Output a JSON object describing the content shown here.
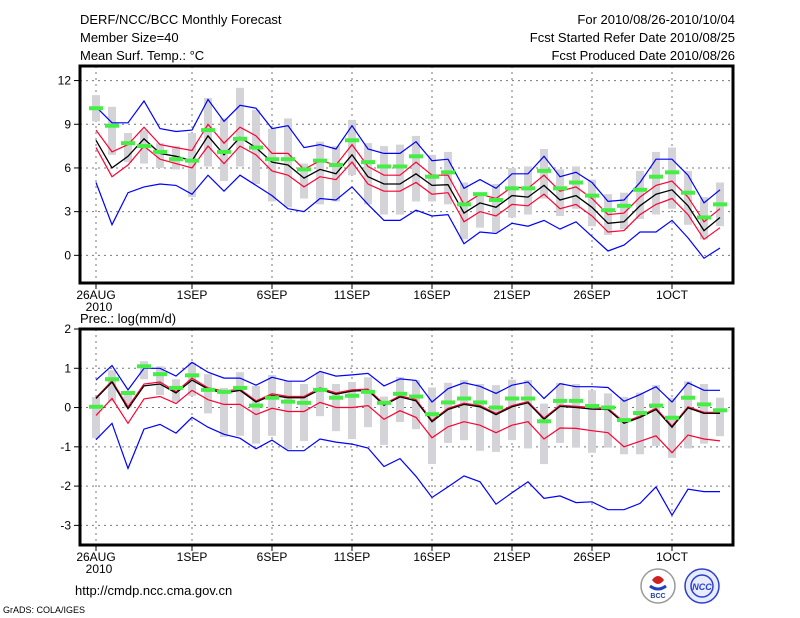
{
  "header": {
    "title": "DERF/NCC/BCC Monthly Forecast",
    "member_size": "Member Size=40",
    "variable": "Mean Surf. Temp.: °C",
    "period": "For 2010/08/26-2010/10/04",
    "start_date": "Fcst Started Refer Date 2010/08/25",
    "produced_date": "Fcst Produced Date 2010/08/26"
  },
  "footer": {
    "url": "http://cmdp.ncc.cma.gov.cn",
    "credit": "GrADS: COLA/IGES",
    "logo_left": "BCC",
    "logo_right": "NCC"
  },
  "colors": {
    "envelope": "#0000ff",
    "spread": "#ff0033",
    "mean": "#000000",
    "box": "#d3d3d8",
    "marker": "#44ee44",
    "grid": "#777777"
  },
  "chart_data": [
    {
      "type": "line",
      "title": "Mean Surf. Temp.: °C",
      "ylabel": "°C",
      "ylim": [
        -1.9,
        13.0
      ],
      "yticks": [
        0,
        3,
        6,
        9,
        12
      ],
      "xticks": [
        {
          "day": 0,
          "label": "26AUG",
          "sub": "2010"
        },
        {
          "day": 6,
          "label": "1SEP"
        },
        {
          "day": 11,
          "label": "6SEP"
        },
        {
          "day": 16,
          "label": "11SEP"
        },
        {
          "day": 21,
          "label": "16SEP"
        },
        {
          "day": 26,
          "label": "21SEP"
        },
        {
          "day": 31,
          "label": "26SEP"
        },
        {
          "day": 36,
          "label": "1OCT"
        }
      ],
      "grid": true,
      "days": 40,
      "series": {
        "blue_upper": [
          10.2,
          9.1,
          9.1,
          10.6,
          8.7,
          8.5,
          8.6,
          10.7,
          9.2,
          10.3,
          10.1,
          8.7,
          8.9,
          7.4,
          7.6,
          7.3,
          8.9,
          7.3,
          7.0,
          7.0,
          7.8,
          6.5,
          6.6,
          4.6,
          5.2,
          4.6,
          5.6,
          5.6,
          6.8,
          5.4,
          5.7,
          5.0,
          3.7,
          3.8,
          5.0,
          6.6,
          6.6,
          5.5,
          3.6,
          4.5
        ],
        "red_upper": [
          8.6,
          7.1,
          7.6,
          8.8,
          7.6,
          7.4,
          7.2,
          9.0,
          7.7,
          8.8,
          8.2,
          7.0,
          7.0,
          5.9,
          6.5,
          6.2,
          7.6,
          6.1,
          5.5,
          5.5,
          6.4,
          5.5,
          5.5,
          3.5,
          4.2,
          3.9,
          4.7,
          4.6,
          5.5,
          4.4,
          4.7,
          3.9,
          2.8,
          2.9,
          4.0,
          4.8,
          5.1,
          4.0,
          2.3,
          3.2
        ],
        "mean": [
          7.9,
          6.0,
          6.8,
          8.0,
          7.0,
          6.8,
          6.5,
          8.2,
          6.9,
          8.1,
          7.4,
          6.4,
          6.2,
          5.3,
          5.9,
          5.6,
          6.9,
          5.4,
          4.9,
          4.9,
          5.6,
          4.8,
          4.85,
          2.9,
          3.6,
          3.3,
          4.1,
          4.0,
          4.8,
          3.8,
          4.1,
          3.3,
          2.2,
          2.3,
          3.4,
          4.2,
          4.5,
          3.4,
          1.7,
          2.6
        ],
        "red_lower": [
          7.4,
          5.4,
          6.2,
          7.5,
          6.6,
          6.3,
          6.0,
          7.5,
          6.3,
          7.5,
          6.9,
          5.8,
          5.5,
          4.7,
          5.4,
          5.2,
          6.4,
          4.9,
          4.4,
          4.4,
          5.0,
          4.2,
          4.3,
          2.3,
          3.0,
          2.7,
          3.5,
          3.4,
          4.2,
          3.2,
          3.5,
          2.7,
          1.6,
          1.7,
          2.8,
          3.5,
          3.9,
          2.8,
          1.1,
          1.9
        ],
        "blue_lower": [
          5.0,
          2.1,
          4.3,
          4.7,
          4.9,
          4.8,
          4.2,
          5.5,
          4.4,
          5.5,
          4.8,
          4.1,
          3.2,
          3.0,
          3.9,
          3.8,
          4.7,
          3.5,
          2.4,
          2.4,
          3.1,
          2.7,
          2.8,
          0.8,
          1.6,
          1.5,
          2.2,
          2.0,
          2.4,
          1.8,
          2.3,
          1.3,
          0.3,
          0.7,
          1.6,
          1.6,
          2.4,
          1.2,
          -0.2,
          0.5
        ],
        "marker": [
          10.1,
          8.9,
          7.7,
          7.5,
          7.1,
          6.6,
          6.5,
          8.6,
          7.1,
          8.0,
          7.4,
          6.6,
          6.6,
          5.9,
          6.5,
          6.2,
          7.9,
          6.4,
          6.1,
          6.1,
          6.8,
          5.4,
          5.7,
          3.5,
          4.2,
          3.8,
          4.6,
          4.6,
          5.8,
          4.6,
          5.0,
          4.1,
          3.1,
          3.4,
          4.5,
          5.4,
          5.7,
          4.3,
          2.6,
          3.5
        ],
        "box_min": [
          9.2,
          6.9,
          6.4,
          6.3,
          6.0,
          5.9,
          4.0,
          6.1,
          5.1,
          6.1,
          4.9,
          3.7,
          3.3,
          3.9,
          3.5,
          3.7,
          5.5,
          3.5,
          2.8,
          2.8,
          3.7,
          3.7,
          3.5,
          1.1,
          1.9,
          1.6,
          2.6,
          2.8,
          3.9,
          2.7,
          3.2,
          2.0,
          1.4,
          1.8,
          2.5,
          2.8,
          3.2,
          2.1,
          1.1,
          2.0
        ],
        "box_max": [
          11.0,
          10.2,
          8.4,
          8.6,
          7.7,
          7.5,
          8.4,
          10.8,
          9.4,
          11.5,
          10.0,
          8.7,
          9.4,
          6.3,
          7.8,
          7.5,
          9.3,
          7.7,
          7.5,
          7.6,
          8.2,
          6.9,
          7.1,
          5.0,
          4.2,
          4.9,
          6.0,
          6.1,
          7.3,
          5.9,
          6.1,
          5.2,
          4.2,
          4.3,
          5.8,
          7.1,
          7.4,
          5.8,
          4.0,
          5.0
        ]
      }
    },
    {
      "type": "line",
      "title": "Prec.: log(mm/d)",
      "ylabel": "log(mm/d)",
      "ylim": [
        -3.5,
        2.0
      ],
      "yticks": [
        -3,
        -2,
        -1,
        0,
        1,
        2
      ],
      "xticks": [
        {
          "day": 0,
          "label": "26AUG",
          "sub": "2010"
        },
        {
          "day": 6,
          "label": "1SEP"
        },
        {
          "day": 11,
          "label": "6SEP"
        },
        {
          "day": 16,
          "label": "11SEP"
        },
        {
          "day": 21,
          "label": "16SEP"
        },
        {
          "day": 26,
          "label": "21SEP"
        },
        {
          "day": 31,
          "label": "26SEP"
        },
        {
          "day": 36,
          "label": "1OCT"
        }
      ],
      "grid": true,
      "days": 40,
      "series": {
        "blue_upper": [
          0.7,
          1.07,
          0.45,
          1.0,
          1.0,
          0.8,
          1.15,
          0.9,
          0.75,
          0.75,
          0.57,
          0.77,
          0.67,
          0.67,
          0.92,
          0.8,
          0.83,
          0.87,
          0.55,
          0.73,
          0.69,
          0.14,
          0.48,
          0.63,
          0.54,
          0.36,
          0.57,
          0.65,
          0.23,
          0.61,
          0.53,
          0.53,
          0.51,
          0.16,
          0.33,
          0.53,
          0.14,
          0.63,
          0.44,
          0.44
        ],
        "red_upper": [
          0.25,
          0.68,
          0.02,
          0.6,
          0.65,
          0.4,
          0.75,
          0.5,
          0.42,
          0.47,
          0.17,
          0.35,
          0.28,
          0.28,
          0.5,
          0.37,
          0.45,
          0.47,
          0.09,
          0.3,
          0.2,
          -0.33,
          -0.02,
          0.11,
          0.05,
          -0.15,
          0.05,
          0.15,
          -0.27,
          0.06,
          0.03,
          0.0,
          -0.02,
          -0.37,
          -0.22,
          -0.02,
          -0.47,
          0.02,
          -0.12,
          -0.12
        ],
        "mean": [
          0.23,
          0.65,
          -0.03,
          0.55,
          0.6,
          0.37,
          0.7,
          0.47,
          0.37,
          0.44,
          0.14,
          0.31,
          0.25,
          0.25,
          0.46,
          0.34,
          0.42,
          0.44,
          0.06,
          0.27,
          0.17,
          -0.36,
          -0.05,
          0.08,
          0.02,
          -0.18,
          0.02,
          0.12,
          -0.3,
          0.03,
          0.0,
          -0.04,
          -0.05,
          -0.4,
          -0.25,
          -0.05,
          -0.5,
          -0.01,
          -0.15,
          -0.15
        ],
        "red_lower": [
          -0.2,
          0.23,
          -0.4,
          0.22,
          0.28,
          0.1,
          0.44,
          0.2,
          0.08,
          0.08,
          -0.18,
          -0.02,
          -0.1,
          -0.1,
          0.13,
          0.0,
          0.0,
          0.05,
          -0.3,
          -0.08,
          -0.25,
          -0.77,
          -0.49,
          -0.36,
          -0.45,
          -0.64,
          -0.45,
          -0.36,
          -0.8,
          -0.52,
          -0.53,
          -0.59,
          -0.64,
          -1.0,
          -0.86,
          -0.72,
          -1.15,
          -0.7,
          -0.8,
          -0.85
        ],
        "blue_lower": [
          -0.82,
          -0.4,
          -1.55,
          -0.55,
          -0.43,
          -0.65,
          -0.25,
          -0.5,
          -0.68,
          -0.78,
          -1.05,
          -0.83,
          -1.1,
          -1.1,
          -0.8,
          -0.88,
          -0.93,
          -1.03,
          -1.5,
          -1.3,
          -1.75,
          -2.29,
          -2.02,
          -1.74,
          -1.89,
          -2.46,
          -2.17,
          -1.89,
          -2.31,
          -2.25,
          -2.42,
          -2.4,
          -2.6,
          -2.6,
          -2.44,
          -2.02,
          -2.74,
          -2.08,
          -2.14,
          -2.14
        ],
        "marker": [
          0.02,
          0.72,
          0.37,
          1.05,
          0.85,
          0.5,
          0.82,
          0.45,
          0.4,
          0.5,
          0.05,
          0.25,
          0.15,
          0.12,
          0.45,
          0.25,
          0.3,
          0.4,
          0.12,
          0.35,
          0.28,
          -0.17,
          0.13,
          0.23,
          0.13,
          0.0,
          0.23,
          0.23,
          -0.35,
          0.17,
          0.17,
          0.04,
          0.0,
          -0.32,
          -0.14,
          0.05,
          -0.26,
          0.25,
          0.08,
          -0.07
        ],
        "box_min": [
          -0.78,
          0.15,
          0.0,
          0.72,
          0.32,
          0.15,
          0.3,
          -0.15,
          -0.75,
          -0.72,
          -0.92,
          -0.72,
          -1.07,
          -0.85,
          -0.22,
          -0.6,
          -0.8,
          -0.5,
          -0.95,
          -0.37,
          -0.55,
          -1.44,
          -0.9,
          -0.83,
          -1.1,
          -1.13,
          -0.83,
          -1.04,
          -1.44,
          -0.9,
          -1.02,
          -1.15,
          -1.02,
          -1.19,
          -1.19,
          -0.98,
          -1.28,
          -1.04,
          -0.92,
          -0.73
        ],
        "box_max": [
          0.27,
          0.95,
          0.42,
          1.18,
          1.05,
          0.72,
          1.15,
          0.85,
          0.5,
          0.9,
          0.55,
          0.83,
          0.68,
          0.6,
          0.9,
          0.6,
          0.65,
          0.77,
          0.28,
          0.78,
          0.7,
          0.51,
          0.63,
          0.7,
          0.6,
          0.57,
          0.71,
          0.7,
          0.1,
          0.63,
          0.6,
          0.44,
          0.36,
          0.27,
          0.38,
          0.57,
          0.25,
          0.67,
          0.6,
          0.25
        ]
      }
    }
  ]
}
